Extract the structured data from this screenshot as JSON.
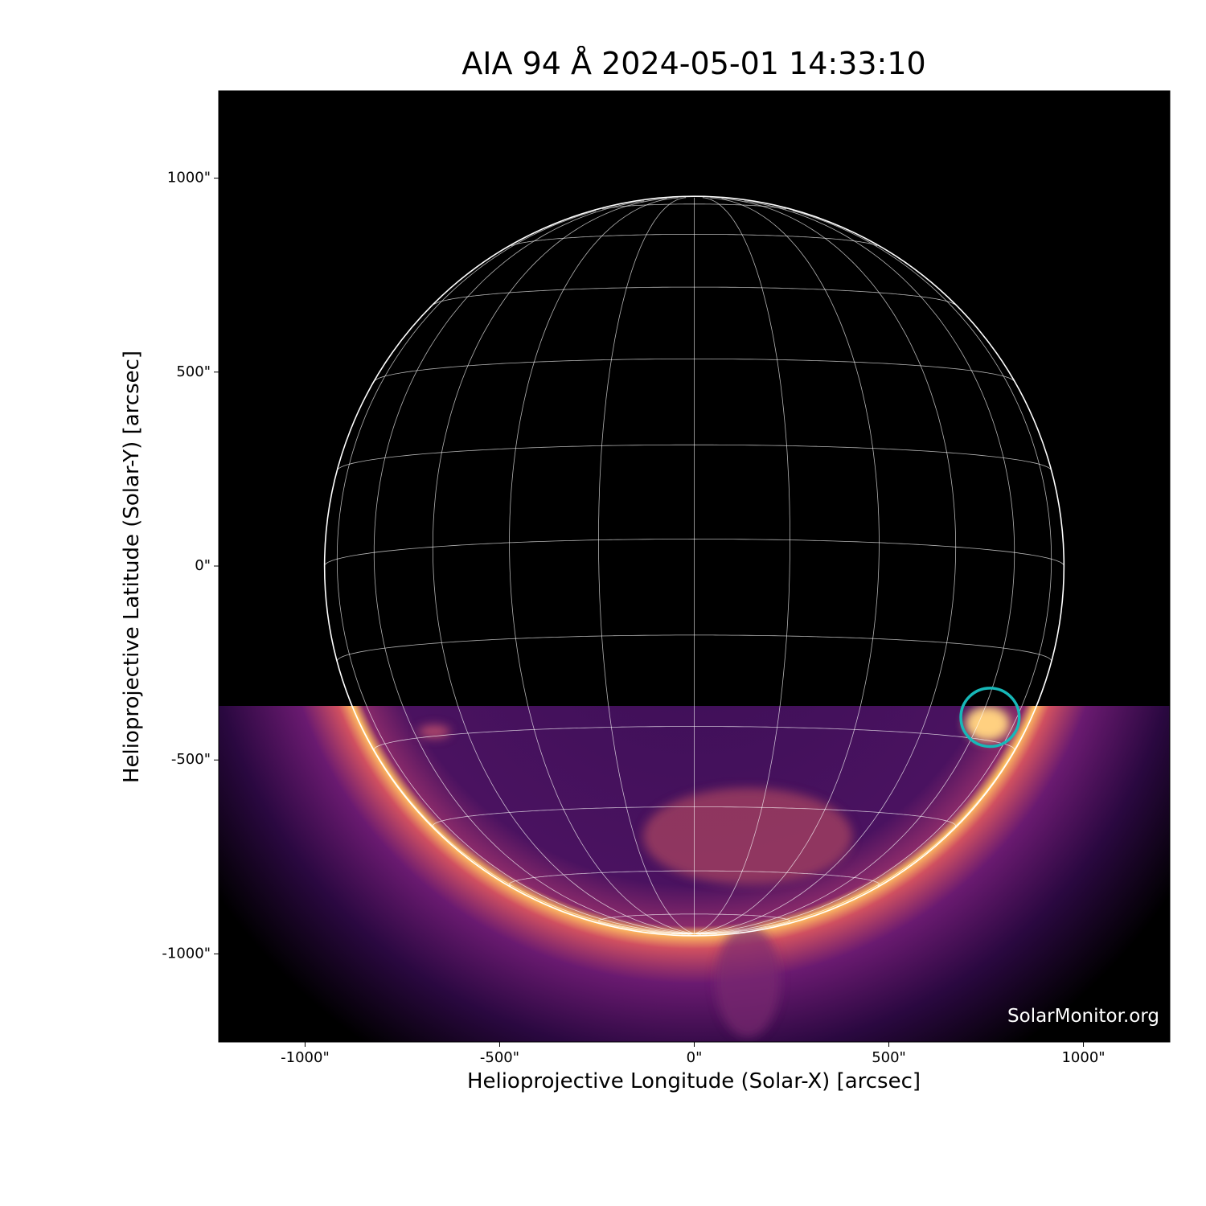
{
  "chart_data": {
    "type": "image",
    "title": "AIA 94 Å 2024-05-01 14:33:10",
    "x_label": "Helioprojective Longitude (Solar-X) [arcsec]",
    "y_label": "Helioprojective Latitude (Solar-Y) [arcsec]",
    "annotation": "SolarMonitor.org",
    "xlim": [
      -1222,
      1222
    ],
    "ylim": [
      -1227,
      1225
    ],
    "xticks": [
      {
        "value": -1000,
        "label": "-1000\""
      },
      {
        "value": -500,
        "label": "-500\""
      },
      {
        "value": 0,
        "label": "0\""
      },
      {
        "value": 500,
        "label": "500\""
      },
      {
        "value": 1000,
        "label": "1000\""
      }
    ],
    "yticks": [
      {
        "value": -1000,
        "label": "-1000\""
      },
      {
        "value": -500,
        "label": "-500\""
      },
      {
        "value": 0,
        "label": "0\""
      },
      {
        "value": 500,
        "label": "500\""
      },
      {
        "value": 1000,
        "label": "1000\""
      }
    ],
    "solar_radius": 950,
    "b0_deg": -4.2,
    "grid": true,
    "grid_spacing_deg": 15,
    "highlight": {
      "x": 760,
      "y": -390,
      "radius": 75,
      "color": "#17b8b8"
    }
  }
}
